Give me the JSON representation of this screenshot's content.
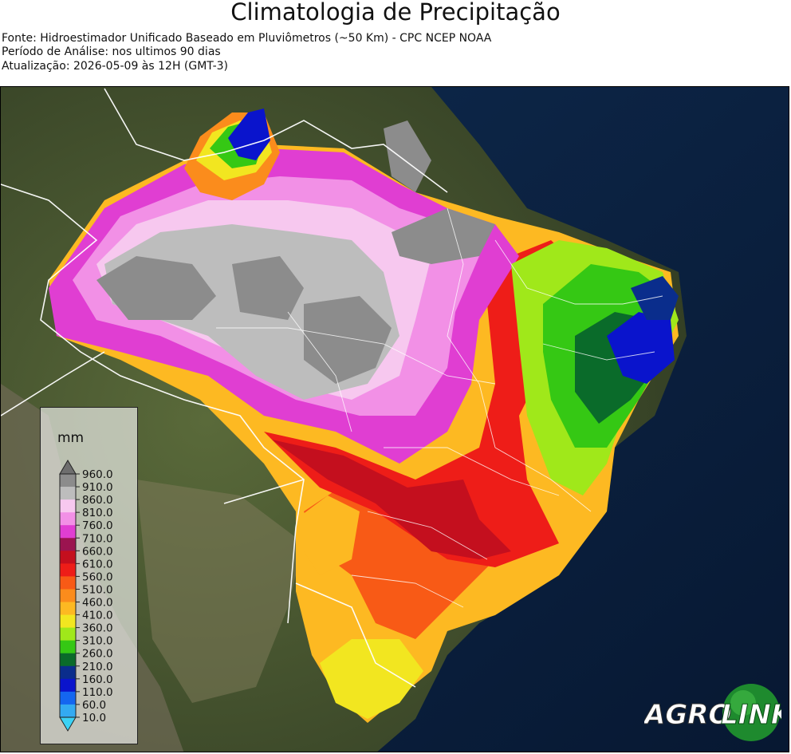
{
  "header": {
    "title": "Climatologia de Precipitação",
    "source": "Fonte: Hidroestimador Unificado Baseado em Pluviômetros (~50 Km) - CPC NCEP NOAA",
    "period": "Período de Análise: nos ultimos 90 dias",
    "update": "Atualização: 2026-05-09 às 12H (GMT-3)"
  },
  "legend": {
    "unit": "mm",
    "levels": [
      "960.0",
      "910.0",
      "860.0",
      "810.0",
      "760.0",
      "710.0",
      "660.0",
      "610.0",
      "560.0",
      "510.0",
      "460.0",
      "410.0",
      "360.0",
      "310.0",
      "260.0",
      "210.0",
      "160.0",
      "110.0",
      "60.0",
      "10.0"
    ],
    "colors": [
      "#8c8c8c",
      "#bdbdbd",
      "#f7c8ef",
      "#f290e6",
      "#e03ed2",
      "#9b1450",
      "#c40f1e",
      "#ee1d18",
      "#f85a16",
      "#fb8c1c",
      "#fdb922",
      "#f2e620",
      "#a0e81a",
      "#35c814",
      "#0a6b2a",
      "#0a2d8c",
      "#0a14cc",
      "#1466f0",
      "#33aaf2"
    ],
    "colors_note_top": "#6e6e6e",
    "colors_note_bottom": "#3cd2f5"
  },
  "logo": {
    "text_agro": "AGRO",
    "text_link": "LINK"
  }
}
